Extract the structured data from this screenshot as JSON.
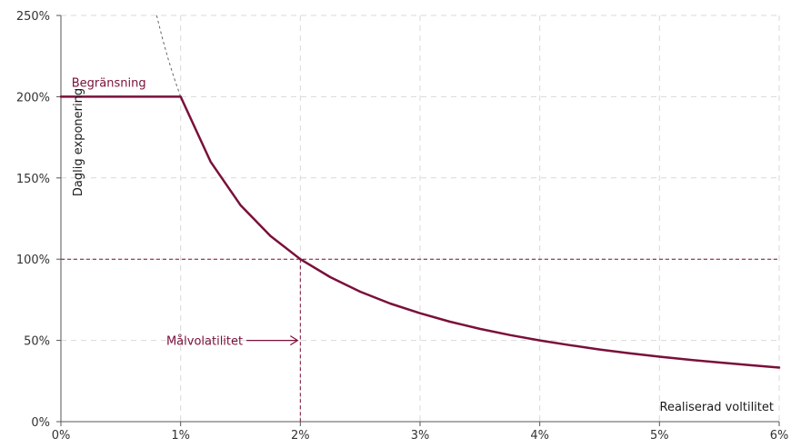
{
  "chart_data": {
    "type": "line",
    "xlabel": "Realiserad voltilitet",
    "ylabel": "Daglig exponering",
    "xlim": [
      0,
      6
    ],
    "ylim": [
      0,
      250
    ],
    "x_ticks": [
      0,
      1,
      2,
      3,
      4,
      5,
      6
    ],
    "x_tick_labels": [
      "0%",
      "1%",
      "2%",
      "3%",
      "4%",
      "5%",
      "6%"
    ],
    "y_ticks": [
      0,
      50,
      100,
      150,
      200,
      250
    ],
    "y_tick_labels": [
      "0%",
      "50%",
      "100%",
      "150%",
      "200%",
      "250%"
    ],
    "grid": true,
    "target_volatility": 2,
    "target_exposure": 100,
    "cap": 200,
    "series": [
      {
        "x": [
          0,
          1,
          1.25,
          1.5,
          1.75,
          2,
          2.25,
          2.5,
          2.75,
          3,
          3.25,
          3.5,
          3.75,
          4,
          4.25,
          4.5,
          4.75,
          5,
          5.25,
          5.5,
          5.75,
          6
        ],
        "values": [
          200,
          200,
          160,
          133.3,
          114.3,
          100,
          88.9,
          80,
          72.7,
          66.7,
          61.5,
          57.1,
          53.3,
          50,
          47.1,
          44.4,
          42.1,
          40,
          38.1,
          36.4,
          34.8,
          33.3
        ]
      },
      {
        "x": [
          0.8,
          0.85,
          0.9,
          0.95,
          1.0
        ],
        "values": [
          250,
          235.3,
          222.2,
          210.5,
          200
        ]
      }
    ],
    "annotations": {
      "cap_label": "Begränsning",
      "target_label": "Målvolatilitet"
    },
    "colors": {
      "accent": "#7a0f3a",
      "grid": "#d9d9d9",
      "axis": "#555555",
      "extension": "#666666"
    }
  }
}
